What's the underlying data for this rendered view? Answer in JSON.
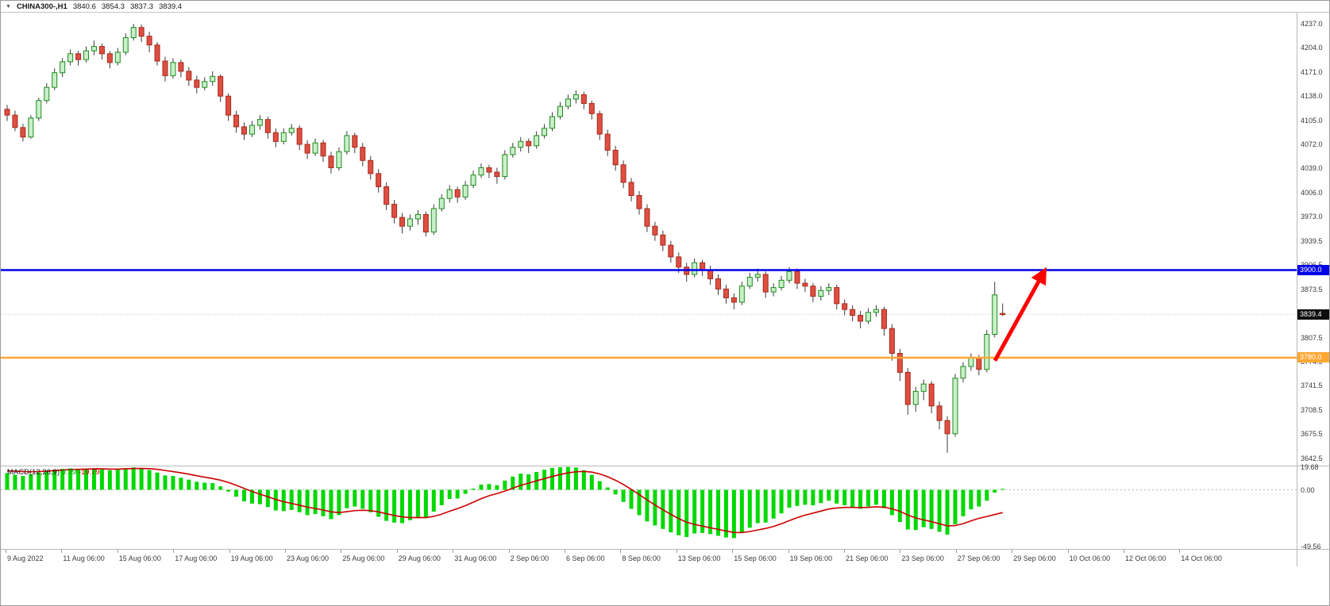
{
  "header": {
    "symbol_label": "CHINA300-,H1",
    "open": "3840.6",
    "high": "3854.3",
    "low": "3837.3",
    "close": "3839.4"
  },
  "chart_data": {
    "type": "candlestick",
    "title": "CHINA300- H1",
    "symbol": "CHINA300-",
    "timeframe": "H1",
    "x_labels": [
      "9 Aug 2022",
      "11 Aug 06:00",
      "15 Aug 06:00",
      "17 Aug 06:00",
      "19 Aug 06:00",
      "23 Aug 06:00",
      "25 Aug 06:00",
      "29 Aug 06:00",
      "31 Aug 06:00",
      "2 Sep 06:00",
      "6 Sep 06:00",
      "8 Sep 06:00",
      "13 Sep 06:00",
      "15 Sep 06:00",
      "19 Sep 06:00",
      "21 Sep 06:00",
      "23 Sep 06:00",
      "27 Sep 06:00",
      "29 Sep 06:00",
      "10 Oct 06:00",
      "12 Oct 06:00",
      "14 Oct 06:00"
    ],
    "price_axis": {
      "ticks": [
        4237.0,
        4204.0,
        4171.0,
        4138.0,
        4105.0,
        4072.0,
        4039.0,
        4006.0,
        3973.0,
        3939.5,
        3906.5,
        3873.5,
        3840.5,
        3807.5,
        3774.5,
        3741.5,
        3708.5,
        3675.5,
        3642.5
      ],
      "max": 4237.0,
      "min": 3642.5
    },
    "candles": [
      [
        4120,
        4126,
        4104,
        4112
      ],
      [
        4112,
        4118,
        4090,
        4095
      ],
      [
        4095,
        4100,
        4076,
        4082
      ],
      [
        4082,
        4112,
        4080,
        4108
      ],
      [
        4108,
        4136,
        4104,
        4132
      ],
      [
        4132,
        4156,
        4128,
        4150
      ],
      [
        4150,
        4176,
        4146,
        4170
      ],
      [
        4170,
        4190,
        4164,
        4185
      ],
      [
        4185,
        4202,
        4180,
        4196
      ],
      [
        4196,
        4200,
        4180,
        4188
      ],
      [
        4188,
        4206,
        4184,
        4200
      ],
      [
        4200,
        4214,
        4194,
        4206
      ],
      [
        4206,
        4210,
        4188,
        4196
      ],
      [
        4196,
        4200,
        4176,
        4184
      ],
      [
        4184,
        4204,
        4180,
        4198
      ],
      [
        4198,
        4224,
        4194,
        4218
      ],
      [
        4218,
        4237,
        4214,
        4232
      ],
      [
        4232,
        4236,
        4212,
        4220
      ],
      [
        4220,
        4226,
        4198,
        4208
      ],
      [
        4208,
        4212,
        4180,
        4186
      ],
      [
        4186,
        4192,
        4158,
        4166
      ],
      [
        4166,
        4190,
        4162,
        4184
      ],
      [
        4184,
        4188,
        4164,
        4172
      ],
      [
        4172,
        4178,
        4152,
        4160
      ],
      [
        4160,
        4166,
        4142,
        4150
      ],
      [
        4150,
        4164,
        4146,
        4158
      ],
      [
        4158,
        4172,
        4152,
        4165
      ],
      [
        4165,
        4168,
        4130,
        4138
      ],
      [
        4138,
        4142,
        4104,
        4112
      ],
      [
        4112,
        4118,
        4088,
        4096
      ],
      [
        4096,
        4102,
        4078,
        4086
      ],
      [
        4086,
        4104,
        4082,
        4098
      ],
      [
        4098,
        4112,
        4092,
        4106
      ],
      [
        4106,
        4110,
        4080,
        4088
      ],
      [
        4088,
        4094,
        4068,
        4076
      ],
      [
        4076,
        4094,
        4072,
        4088
      ],
      [
        4088,
        4100,
        4084,
        4094
      ],
      [
        4094,
        4098,
        4064,
        4072
      ],
      [
        4072,
        4078,
        4052,
        4060
      ],
      [
        4060,
        4080,
        4056,
        4074
      ],
      [
        4074,
        4078,
        4048,
        4056
      ],
      [
        4056,
        4062,
        4032,
        4040
      ],
      [
        4040,
        4068,
        4036,
        4062
      ],
      [
        4062,
        4090,
        4058,
        4084
      ],
      [
        4084,
        4088,
        4060,
        4068
      ],
      [
        4068,
        4074,
        4042,
        4050
      ],
      [
        4050,
        4056,
        4024,
        4032
      ],
      [
        4032,
        4038,
        4006,
        4014
      ],
      [
        4014,
        4020,
        3982,
        3990
      ],
      [
        3990,
        3996,
        3964,
        3972
      ],
      [
        3972,
        3978,
        3950,
        3960
      ],
      [
        3960,
        3976,
        3954,
        3970
      ],
      [
        3970,
        3982,
        3962,
        3976
      ],
      [
        3976,
        3980,
        3946,
        3952
      ],
      [
        3952,
        3990,
        3948,
        3984
      ],
      [
        3984,
        4004,
        3980,
        3998
      ],
      [
        3998,
        4016,
        3992,
        4010
      ],
      [
        4010,
        4014,
        3992,
        4000
      ],
      [
        4000,
        4022,
        3996,
        4016
      ],
      [
        4016,
        4036,
        4012,
        4030
      ],
      [
        4030,
        4046,
        4026,
        4040
      ],
      [
        4040,
        4044,
        4026,
        4034
      ],
      [
        4034,
        4040,
        4018,
        4028
      ],
      [
        4028,
        4064,
        4024,
        4058
      ],
      [
        4058,
        4074,
        4054,
        4068
      ],
      [
        4068,
        4082,
        4062,
        4076
      ],
      [
        4076,
        4080,
        4060,
        4070
      ],
      [
        4070,
        4090,
        4066,
        4084
      ],
      [
        4084,
        4100,
        4080,
        4094
      ],
      [
        4094,
        4116,
        4090,
        4110
      ],
      [
        4110,
        4130,
        4106,
        4124
      ],
      [
        4124,
        4140,
        4120,
        4134
      ],
      [
        4134,
        4146,
        4128,
        4140
      ],
      [
        4140,
        4144,
        4120,
        4128
      ],
      [
        4128,
        4132,
        4106,
        4114
      ],
      [
        4114,
        4118,
        4078,
        4086
      ],
      [
        4086,
        4092,
        4056,
        4064
      ],
      [
        4064,
        4070,
        4036,
        4044
      ],
      [
        4044,
        4050,
        4012,
        4020
      ],
      [
        4020,
        4026,
        3994,
        4002
      ],
      [
        4002,
        4008,
        3976,
        3984
      ],
      [
        3984,
        3990,
        3952,
        3960
      ],
      [
        3960,
        3966,
        3940,
        3948
      ],
      [
        3948,
        3954,
        3926,
        3934
      ],
      [
        3934,
        3940,
        3910,
        3918
      ],
      [
        3918,
        3924,
        3896,
        3904
      ],
      [
        3904,
        3910,
        3884,
        3894
      ],
      [
        3894,
        3916,
        3890,
        3910
      ],
      [
        3910,
        3914,
        3892,
        3900
      ],
      [
        3900,
        3906,
        3880,
        3888
      ],
      [
        3888,
        3894,
        3866,
        3874
      ],
      [
        3874,
        3880,
        3854,
        3862
      ],
      [
        3862,
        3868,
        3846,
        3856
      ],
      [
        3856,
        3884,
        3852,
        3878
      ],
      [
        3878,
        3896,
        3874,
        3890
      ],
      [
        3890,
        3902,
        3884,
        3894
      ],
      [
        3894,
        3898,
        3862,
        3870
      ],
      [
        3870,
        3882,
        3864,
        3876
      ],
      [
        3876,
        3892,
        3872,
        3886
      ],
      [
        3886,
        3904,
        3882,
        3898
      ],
      [
        3898,
        3902,
        3874,
        3882
      ],
      [
        3882,
        3888,
        3870,
        3878
      ],
      [
        3878,
        3882,
        3856,
        3864
      ],
      [
        3864,
        3878,
        3858,
        3872
      ],
      [
        3872,
        3882,
        3866,
        3876
      ],
      [
        3876,
        3880,
        3846,
        3854
      ],
      [
        3854,
        3860,
        3838,
        3846
      ],
      [
        3846,
        3852,
        3830,
        3838
      ],
      [
        3838,
        3844,
        3820,
        3830
      ],
      [
        3830,
        3848,
        3826,
        3842
      ],
      [
        3842,
        3852,
        3836,
        3846
      ],
      [
        3846,
        3850,
        3810,
        3820
      ],
      [
        3820,
        3826,
        3776,
        3786
      ],
      [
        3786,
        3792,
        3748,
        3760
      ],
      [
        3760,
        3766,
        3702,
        3716
      ],
      [
        3716,
        3740,
        3706,
        3734
      ],
      [
        3734,
        3750,
        3722,
        3744
      ],
      [
        3744,
        3748,
        3704,
        3714
      ],
      [
        3714,
        3720,
        3682,
        3694
      ],
      [
        3694,
        3700,
        3650,
        3676
      ],
      [
        3676,
        3758,
        3672,
        3752
      ],
      [
        3752,
        3774,
        3746,
        3768
      ],
      [
        3768,
        3786,
        3762,
        3780
      ],
      [
        3780,
        3784,
        3756,
        3764
      ],
      [
        3764,
        3818,
        3760,
        3812
      ],
      [
        3812,
        3884,
        3808,
        3866
      ],
      [
        3840.6,
        3854.3,
        3837.3,
        3839.4
      ]
    ],
    "horizontal_lines": [
      {
        "id": "resistance",
        "price": 3900.0,
        "label": "3900.0",
        "color": "#0000F0",
        "width": 2.5
      },
      {
        "id": "support",
        "price": 3780.0,
        "label": "3780.0",
        "color": "#FFA733",
        "width": 2.5
      }
    ],
    "current_price": {
      "value": 3839.4,
      "label": "3839.4",
      "color": "#0d0d0d"
    },
    "annotations": [
      {
        "type": "arrow",
        "direction": "up",
        "color": "#FF0000",
        "from_price": 3776,
        "to_price": 3898
      }
    ],
    "macd": {
      "name": "MACD(12,26,9)",
      "main_value": "0.79",
      "signal_value": "-19.79",
      "axis_ticks": [
        "19.68",
        "0.00",
        "-49.56"
      ],
      "histogram_color": "#00D800",
      "signal_color": "#CC0000",
      "histogram": [
        14.5,
        13,
        12,
        13.5,
        15,
        16.5,
        17.5,
        18.2,
        18.6,
        17.8,
        18.4,
        18.8,
        18,
        17,
        17.6,
        18.8,
        19.5,
        18.6,
        17.2,
        15,
        12.5,
        12,
        10.5,
        8.8,
        7,
        6.2,
        5.8,
        3,
        -1.5,
        -6,
        -10,
        -12,
        -12.5,
        -15,
        -18,
        -18.5,
        -17.5,
        -19.5,
        -22,
        -21,
        -23,
        -25.5,
        -22,
        -16,
        -14.5,
        -16.5,
        -19.5,
        -23.5,
        -27,
        -28.5,
        -29,
        -26.5,
        -23.5,
        -24.5,
        -19,
        -13.5,
        -8,
        -7.5,
        -3.5,
        1,
        4.5,
        5,
        4,
        8,
        11.5,
        14,
        13.5,
        15.5,
        17.5,
        19,
        19.6,
        19.9,
        19.3,
        17,
        13,
        7.5,
        2,
        -4,
        -10.5,
        -16.5,
        -22,
        -27.5,
        -31,
        -34,
        -37,
        -39.5,
        -41,
        -38,
        -37.5,
        -38.5,
        -40,
        -41.5,
        -42,
        -37.5,
        -33,
        -29,
        -28.5,
        -25,
        -20.5,
        -15.5,
        -14,
        -13,
        -13.5,
        -11.5,
        -9.5,
        -12,
        -13.5,
        -15,
        -16.5,
        -14.5,
        -13,
        -16,
        -22,
        -28,
        -34.5,
        -35,
        -32.5,
        -34,
        -36.5,
        -39,
        -30,
        -23,
        -17,
        -14.5,
        -9.5,
        -2.5,
        0.79
      ],
      "signal": [
        16.5,
        16.2,
        15.8,
        15.6,
        15.8,
        16.2,
        16.7,
        17.2,
        17.6,
        17.8,
        18,
        18.2,
        18.2,
        18,
        18,
        18.2,
        18.5,
        18.6,
        18.4,
        17.8,
        16.8,
        15.8,
        14.8,
        13.6,
        12.2,
        11,
        9.8,
        8.4,
        6.4,
        4,
        1.2,
        -1.5,
        -3.8,
        -6,
        -8.4,
        -10.4,
        -11.8,
        -13.4,
        -15.1,
        -16.3,
        -17.6,
        -19.2,
        -19.8,
        -19,
        -18.1,
        -17.8,
        -18.1,
        -19.2,
        -20.8,
        -22.3,
        -23.6,
        -24.2,
        -24.1,
        -24.2,
        -23.1,
        -21.2,
        -18.6,
        -16.4,
        -13.8,
        -10.8,
        -7.7,
        -5.2,
        -3.3,
        -1.1,
        1.4,
        3.9,
        5.8,
        7.8,
        9.7,
        11.6,
        13.3,
        14.7,
        15.7,
        16,
        15.4,
        13.8,
        11.4,
        8.3,
        4.6,
        0.4,
        -4.1,
        -8.8,
        -13.2,
        -17.4,
        -21.3,
        -25,
        -28.2,
        -30.1,
        -31.6,
        -33,
        -34.4,
        -35.8,
        -37.1,
        -37.2,
        -36.3,
        -34.9,
        -33.6,
        -31.9,
        -29.6,
        -26.8,
        -24.2,
        -22,
        -20.3,
        -18.5,
        -16.7,
        -15.8,
        -15.3,
        -15.3,
        -15.5,
        -15.3,
        -14.8,
        -15.1,
        -16.5,
        -18.8,
        -21.9,
        -24.5,
        -26.1,
        -27.7,
        -29.5,
        -31.4,
        -31.1,
        -29.5,
        -27,
        -24.8,
        -23.2,
        -21.5,
        -19.79
      ]
    },
    "colors": {
      "background": "#FFFFFF",
      "bull_fill": "#C9EFC9",
      "bull_border": "#1E8C1E",
      "bear_fill": "#DD4F41",
      "bear_border": "#A82A1E",
      "wick": "#3C3C3C",
      "bid_line": "#C2C2C2"
    }
  }
}
